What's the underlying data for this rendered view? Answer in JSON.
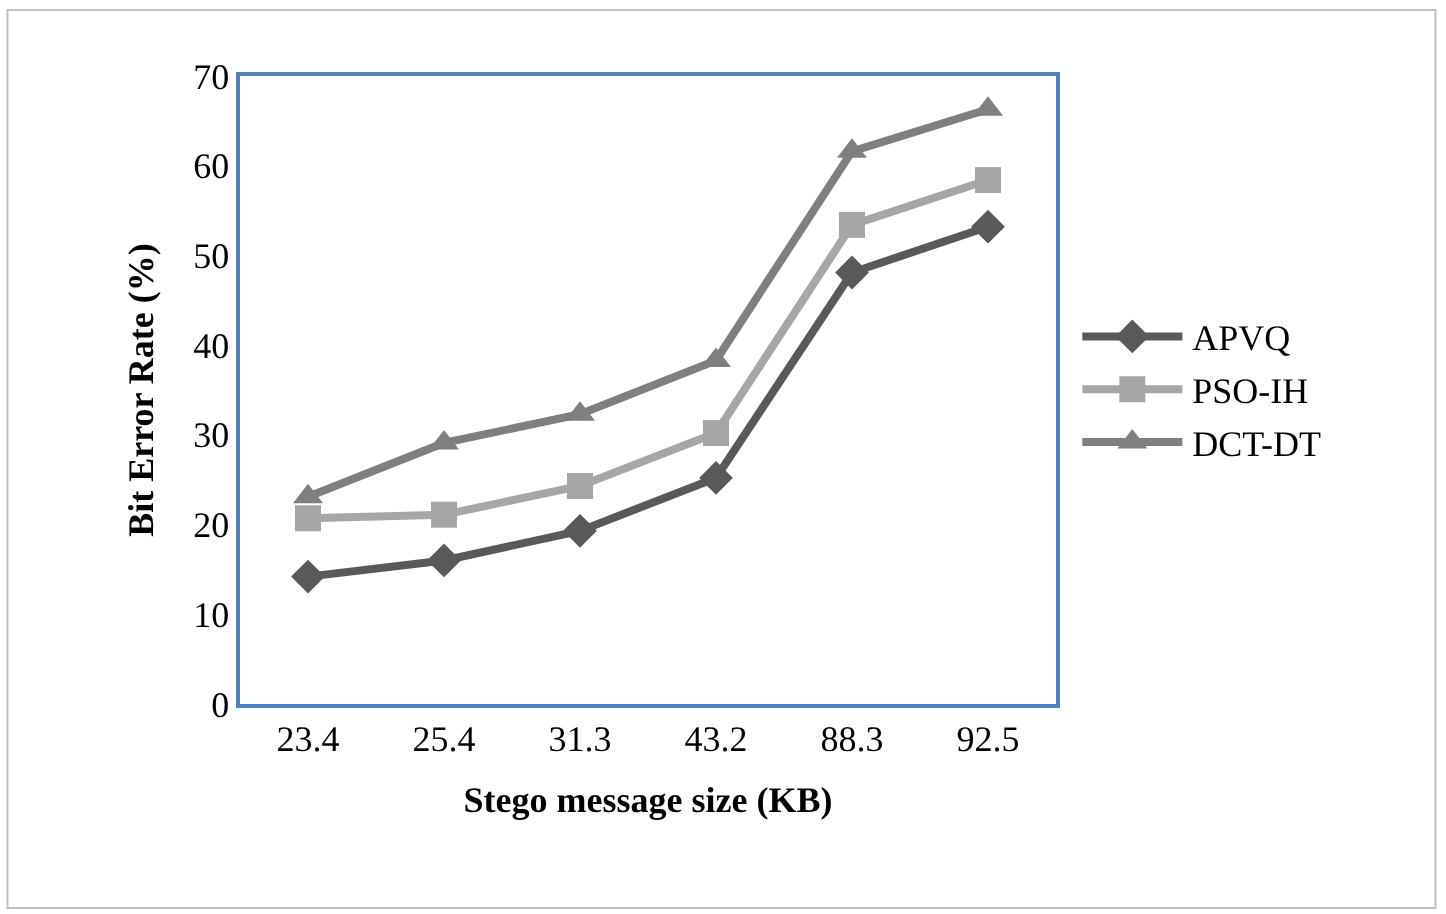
{
  "chart_data": {
    "type": "line",
    "xlabel": "Stego message size (KB)",
    "ylabel": "Bit Error Rate (%)",
    "categories": [
      "23.4",
      "25.4",
      "31.3",
      "43.2",
      "88.3",
      "92.5"
    ],
    "series": [
      {
        "name": "APVQ",
        "color": "#595959",
        "marker": "diamond",
        "values": [
          14.2,
          16.0,
          19.3,
          25.2,
          48.1,
          53.2
        ]
      },
      {
        "name": "PSO-IH",
        "color": "#a6a6a6",
        "marker": "square",
        "values": [
          20.7,
          21.1,
          24.3,
          30.2,
          53.4,
          58.4
        ]
      },
      {
        "name": "DCT-DT",
        "color": "#7f7f7f",
        "marker": "triangle",
        "values": [
          23.1,
          29.1,
          32.3,
          38.3,
          61.6,
          66.3
        ]
      }
    ],
    "ylim": [
      0,
      70
    ],
    "yticks": [
      0,
      10,
      20,
      30,
      40,
      50,
      60,
      70
    ],
    "legend": "right",
    "line_style": "solid"
  }
}
